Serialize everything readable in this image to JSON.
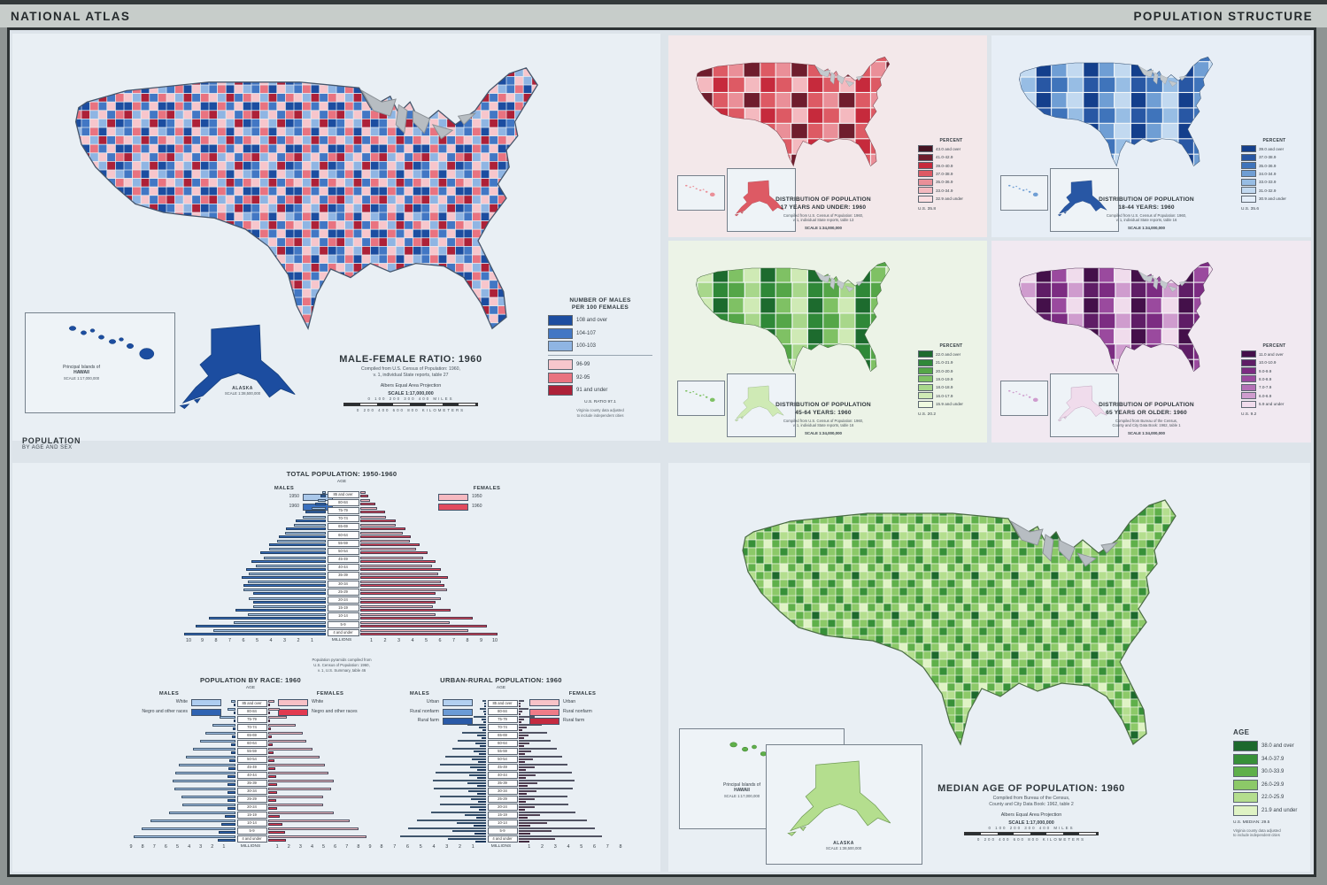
{
  "header": {
    "left_title": "NATIONAL ATLAS",
    "right_title": "POPULATION STRUCTURE"
  },
  "mf_map": {
    "title": "MALE-FEMALE RATIO: 1960",
    "source_line1": "Compiled from U.S. Census of Population: 1960,",
    "source_line2": "v. 1, individual State reports, table 27",
    "projection": "Albers Equal Area Projection",
    "scale": "SCALE 1:17,000,000",
    "miles_line": "0   100   200   300   400  MILES",
    "km_line": "0  200  400  600  800  KILOMETERS",
    "legend_title_line1": "NUMBER OF MALES",
    "legend_title_line2": "PER 100 FEMALES",
    "legend": [
      {
        "color": "#1c4da0",
        "label": "108 and over"
      },
      {
        "color": "#4277c4",
        "label": "104-107"
      },
      {
        "color": "#8fb5e3",
        "label": "100-103",
        "divider": true
      },
      {
        "color": "#f7c6cc",
        "label": "96-99"
      },
      {
        "color": "#e97380",
        "label": "92-95"
      },
      {
        "color": "#ad2138",
        "label": "91 and under"
      }
    ],
    "us_note": "U.S. RATIO 97.1",
    "adjust_note_line1": "Virginia county data adjusted",
    "adjust_note_line2": "to include independent cities",
    "hawaii_label_line1": "Principal Islands of",
    "hawaii_label_line2": "HAWAII",
    "hawaii_scale": "SCALE 1:17,000,000",
    "alaska_label": "ALASKA",
    "alaska_scale": "SCALE 1:38,500,000"
  },
  "age_maps": [
    {
      "title_line1": "DISTRIBUTION OF POPULATION",
      "title_line2": "17 YEARS AND UNDER: 1960",
      "source_line1": "Compiled from U.S. Census of Population: 1960,",
      "source_line2": "v. 1, individual State reports, table 13",
      "scale": "SCALE 1:34,000,000",
      "legend_title": "PERCENT",
      "us_value": "U.S. 35.8",
      "legend": [
        {
          "color": "#451322",
          "label": "43.0 and over"
        },
        {
          "color": "#6f1d2d",
          "label": "41.0-42.9"
        },
        {
          "color": "#c62a3c",
          "label": "39.0-40.9"
        },
        {
          "color": "#dd5a64",
          "label": "37.0-38.9"
        },
        {
          "color": "#ea8f98",
          "label": "35.0-36.9"
        },
        {
          "color": "#f4b9bf",
          "label": "33.0-34.9"
        },
        {
          "color": "#fbdee1",
          "label": "32.9 and under"
        }
      ]
    },
    {
      "title_line1": "DISTRIBUTION OF POPULATION",
      "title_line2": "18-44 YEARS: 1960",
      "source_line1": "Compiled from U.S. Census of Population: 1960,",
      "source_line2": "v. 1, individual State reports, table 16",
      "scale": "SCALE 1:34,000,000",
      "legend_title": "PERCENT",
      "us_value": "U.S. 35.6",
      "legend": [
        {
          "color": "#143f8c",
          "label": "39.0 and over"
        },
        {
          "color": "#2857a4",
          "label": "37.0-38.9"
        },
        {
          "color": "#3f74bb",
          "label": "35.0-36.9"
        },
        {
          "color": "#6f9ed4",
          "label": "34.0-34.9"
        },
        {
          "color": "#97bde4",
          "label": "33.0-33.9"
        },
        {
          "color": "#c2d9f0",
          "label": "31.0-32.9"
        },
        {
          "color": "#e4eef9",
          "label": "30.9 and under"
        }
      ]
    },
    {
      "title_line1": "DISTRIBUTION OF POPULATION",
      "title_line2": "45-64 YEARS: 1960",
      "source_line1": "Compiled from U.S. Census of Population: 1960,",
      "source_line2": "v. 1, individual State reports, table 16",
      "scale": "SCALE 1:34,000,000",
      "legend_title": "PERCENT",
      "us_value": "U.S. 20.2",
      "legend": [
        {
          "color": "#1d6b2e",
          "label": "22.0 and over"
        },
        {
          "color": "#2f8838",
          "label": "21.0-21.9"
        },
        {
          "color": "#55a648",
          "label": "20.0-20.9"
        },
        {
          "color": "#7fc164",
          "label": "19.0-19.9"
        },
        {
          "color": "#a8d78b",
          "label": "18.0-18.9"
        },
        {
          "color": "#cfeab5",
          "label": "16.0-17.9"
        },
        {
          "color": "#effae0",
          "label": "15.9 and under"
        }
      ]
    },
    {
      "title_line1": "DISTRIBUTION OF POPULATION",
      "title_line2": "65 YEARS OR OLDER: 1960",
      "source_line1": "Compiled from Bureau of the Census,",
      "source_line2": "County and City Data Book: 1962, table 1",
      "scale": "SCALE 1:34,000,000",
      "legend_title": "PERCENT",
      "us_value": "U.S. 9.2",
      "legend": [
        {
          "color": "#44104a",
          "label": "11.0 and over"
        },
        {
          "color": "#5f1d66",
          "label": "10.0-10.9"
        },
        {
          "color": "#7c2c82",
          "label": "9.0-9.9"
        },
        {
          "color": "#9a4a9e",
          "label": "8.0-8.9"
        },
        {
          "color": "#b470b6",
          "label": "7.0-7.9"
        },
        {
          "color": "#cf9cce",
          "label": "6.0-6.9"
        },
        {
          "color": "#f0dcec",
          "label": "5.9 and under"
        }
      ]
    }
  ],
  "pyramids": {
    "section_label_line1": "POPULATION",
    "section_label_line2": "BY AGE AND SEX",
    "footnote_line1": "Population pyramids compiled from",
    "footnote_line2": "U.S. Census of Population: 1960,",
    "footnote_line3": "v. 1, U.S. Summary, table 46"
  },
  "chart_data": [
    {
      "type": "bar",
      "subtype": "population-pyramid",
      "title": "TOTAL POPULATION: 1950-1960",
      "age_header": "AGE",
      "axis_label": "MILLIONS",
      "axis_max": 10,
      "legend_male_title": "MALES",
      "legend_female_title": "FEMALES",
      "categories_top_to_bottom": [
        "85 and over",
        "80-84",
        "75-79",
        "70-74",
        "65-69",
        "60-64",
        "55-59",
        "50-54",
        "45-49",
        "40-44",
        "35-39",
        "30-34",
        "25-29",
        "20-24",
        "15-19",
        "10-14",
        "5-9",
        "4 and under"
      ],
      "male_series": [
        {
          "name": "1950",
          "color": "#a9c7e9",
          "values": [
            0.25,
            0.55,
            1.05,
            1.65,
            2.35,
            2.95,
            3.55,
            4.1,
            4.5,
            5.1,
            5.6,
            5.7,
            6.0,
            5.6,
            5.3,
            5.7,
            6.7,
            8.2
          ]
        },
        {
          "name": "1960",
          "color": "#3a70bf",
          "values": [
            0.4,
            0.8,
            1.5,
            2.2,
            2.9,
            3.4,
            4.1,
            4.8,
            5.4,
            5.8,
            6.1,
            6.0,
            5.3,
            5.3,
            6.6,
            8.5,
            9.5,
            10.3
          ]
        }
      ],
      "female_series": [
        {
          "name": "1950",
          "color": "#f6b9c0",
          "values": [
            0.4,
            0.7,
            1.25,
            1.9,
            2.55,
            3.1,
            3.6,
            4.05,
            4.55,
            5.2,
            5.7,
            5.9,
            6.3,
            5.9,
            5.3,
            5.5,
            6.5,
            7.9
          ]
        },
        {
          "name": "1960",
          "color": "#e14a5e",
          "values": [
            0.6,
            1.1,
            1.8,
            2.6,
            3.3,
            3.7,
            4.3,
            4.9,
            5.5,
            5.9,
            6.4,
            6.1,
            5.5,
            5.5,
            6.6,
            8.2,
            9.2,
            10.0
          ]
        }
      ]
    },
    {
      "type": "bar",
      "subtype": "population-pyramid",
      "title": "POPULATION BY RACE: 1960",
      "age_header": "AGE",
      "axis_label": "MILLIONS",
      "axis_max": 9,
      "legend_male_title": "MALES",
      "legend_female_title": "FEMALES",
      "categories_top_to_bottom": [
        "85 and over",
        "80-84",
        "75-79",
        "70-74",
        "65-69",
        "60-64",
        "55-59",
        "50-54",
        "45-49",
        "40-44",
        "35-39",
        "30-34",
        "25-29",
        "20-24",
        "15-19",
        "10-14",
        "5-9",
        "4 and under"
      ],
      "male_series": [
        {
          "name": "White",
          "color": "#aecdf0",
          "values": [
            0.35,
            0.72,
            1.35,
            2.0,
            2.6,
            3.05,
            3.7,
            4.3,
            4.85,
            5.15,
            5.45,
            5.3,
            4.65,
            4.6,
            5.7,
            7.3,
            8.1,
            8.8
          ]
        },
        {
          "name": "Negro and other races",
          "color": "#2f63b2",
          "values": [
            0.05,
            0.08,
            0.15,
            0.22,
            0.3,
            0.35,
            0.42,
            0.52,
            0.58,
            0.66,
            0.7,
            0.7,
            0.66,
            0.7,
            0.95,
            1.25,
            1.45,
            1.55
          ]
        }
      ],
      "female_series": [
        {
          "name": "White",
          "color": "#f8c0c6",
          "values": [
            0.53,
            0.98,
            1.6,
            2.35,
            2.95,
            3.3,
            3.85,
            4.4,
            4.9,
            5.2,
            5.65,
            5.4,
            4.75,
            4.7,
            5.65,
            7.0,
            7.8,
            8.45
          ]
        },
        {
          "name": "Negro and other races",
          "color": "#e23a50",
          "values": [
            0.06,
            0.1,
            0.18,
            0.26,
            0.33,
            0.4,
            0.46,
            0.55,
            0.62,
            0.7,
            0.76,
            0.74,
            0.72,
            0.8,
            0.97,
            1.25,
            1.42,
            1.55
          ]
        }
      ]
    },
    {
      "type": "bar",
      "subtype": "population-pyramid",
      "title": "URBAN-RURAL POPULATION: 1960",
      "age_header": "AGE",
      "axis_label": "MILLIONS",
      "axis_max": 8,
      "legend_male_title": "MALES",
      "legend_female_title": "FEMALES",
      "categories_top_to_bottom": [
        "85 and over",
        "80-84",
        "75-79",
        "70-74",
        "65-69",
        "60-64",
        "55-59",
        "50-54",
        "45-49",
        "40-44",
        "35-39",
        "30-34",
        "25-29",
        "20-24",
        "15-19",
        "10-14",
        "5-9",
        "4 and under"
      ],
      "male_series": [
        {
          "name": "Urban",
          "color": "#b3d0f0",
          "values": [
            0.26,
            0.5,
            0.95,
            1.4,
            1.85,
            2.15,
            2.6,
            3.1,
            3.55,
            3.85,
            4.05,
            4.0,
            3.55,
            3.5,
            4.2,
            5.3,
            6.0,
            6.55
          ]
        },
        {
          "name": "Rural nonfarm",
          "color": "#6b9bd6",
          "values": [
            0.09,
            0.2,
            0.36,
            0.52,
            0.68,
            0.8,
            0.95,
            1.1,
            1.2,
            1.3,
            1.4,
            1.35,
            1.15,
            1.25,
            1.65,
            2.25,
            2.6,
            2.95
          ]
        },
        {
          "name": "Rural farm",
          "color": "#2a5aa8",
          "values": [
            0.05,
            0.1,
            0.19,
            0.28,
            0.37,
            0.45,
            0.55,
            0.6,
            0.65,
            0.65,
            0.65,
            0.65,
            0.6,
            0.55,
            0.75,
            0.95,
            0.9,
            0.8
          ]
        }
      ],
      "female_series": [
        {
          "name": "Urban",
          "color": "#f8c3c8",
          "values": [
            0.4,
            0.72,
            1.2,
            1.75,
            2.2,
            2.45,
            2.9,
            3.35,
            3.75,
            4.05,
            4.3,
            4.15,
            3.75,
            3.8,
            4.35,
            5.2,
            5.85,
            6.4
          ]
        },
        {
          "name": "Rural nonfarm",
          "color": "#ee7c88",
          "values": [
            0.13,
            0.26,
            0.4,
            0.58,
            0.72,
            0.82,
            0.95,
            1.1,
            1.2,
            1.3,
            1.4,
            1.35,
            1.2,
            1.25,
            1.6,
            2.15,
            2.5,
            2.8
          ]
        },
        {
          "name": "Rural farm",
          "color": "#c42a40",
          "values": [
            0.07,
            0.12,
            0.2,
            0.27,
            0.38,
            0.43,
            0.45,
            0.45,
            0.55,
            0.55,
            0.7,
            0.6,
            0.55,
            0.45,
            0.65,
            0.85,
            0.85,
            0.8
          ]
        }
      ]
    }
  ],
  "median_map": {
    "title": "MEDIAN AGE OF POPULATION: 1960",
    "source_line1": "Compiled from Bureau of the Census,",
    "source_line2": "County and City Data Book: 1962, table 2",
    "projection": "Albers Equal Area Projection",
    "scale": "SCALE 1:17,000,000",
    "miles_line": "0   100   200   300   400  MILES",
    "km_line": "0  200  400  600  800  KILOMETERS",
    "legend_title": "AGE",
    "legend": [
      {
        "color": "#1d692d",
        "label": "38.0 and over"
      },
      {
        "color": "#379038",
        "label": "34.0-37.9"
      },
      {
        "color": "#5fb04a",
        "label": "30.0-33.9"
      },
      {
        "color": "#8cc968",
        "label": "26.0-29.9"
      },
      {
        "color": "#b4de8e",
        "label": "22.0-25.9"
      },
      {
        "color": "#dff3c4",
        "label": "21.9 and under"
      }
    ],
    "us_note": "U.S. MEDIAN: 29.5",
    "adjust_note_line1": "Virginia county data adjusted",
    "adjust_note_line2": "to include independent cities",
    "hawaii_label_line1": "Principal Islands of",
    "hawaii_label_line2": "HAWAII",
    "hawaii_scale": "SCALE 1:17,000,000",
    "alaska_label": "ALASKA",
    "alaska_scale": "SCALE 1:38,500,000"
  }
}
